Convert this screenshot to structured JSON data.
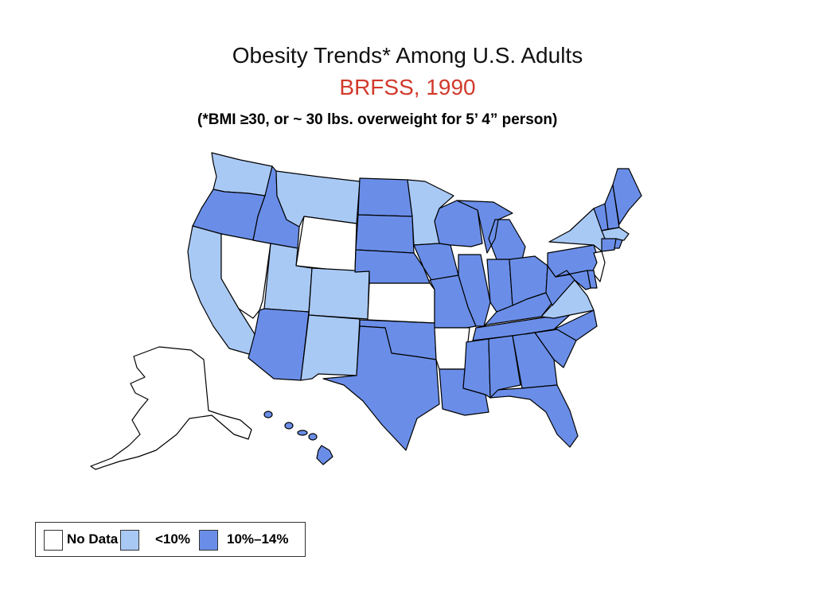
{
  "title": "Obesity Trends* Among U.S. Adults",
  "subtitle": "BRFSS, 1990",
  "note": "(*BMI ≥30, or ~ 30 lbs. overweight for 5’ 4” person)",
  "colors": {
    "title": "#111111",
    "subtitle": "#d13a2c",
    "no_data": "#ffffff",
    "lt10": "#a9c9f5",
    "r10_14": "#6a8ee8"
  },
  "legend": [
    {
      "label": "No Data",
      "category": "no_data"
    },
    {
      "label": "<10%",
      "category": "lt10"
    },
    {
      "label": "10%–14%",
      "category": "r10_14"
    }
  ],
  "states": {
    "WA": "lt10",
    "OR": "r10_14",
    "CA": "lt10",
    "NV": "no_data",
    "ID": "r10_14",
    "MT": "lt10",
    "WY": "no_data",
    "UT": "lt10",
    "CO": "lt10",
    "AZ": "r10_14",
    "NM": "lt10",
    "ND": "r10_14",
    "SD": "r10_14",
    "NE": "r10_14",
    "KS": "no_data",
    "OK": "r10_14",
    "TX": "r10_14",
    "MN": "lt10",
    "IA": "r10_14",
    "MO": "r10_14",
    "AR": "no_data",
    "LA": "r10_14",
    "WI": "r10_14",
    "IL": "r10_14",
    "MI": "r10_14",
    "IN": "r10_14",
    "OH": "r10_14",
    "KY": "r10_14",
    "TN": "r10_14",
    "MS": "r10_14",
    "AL": "r10_14",
    "GA": "r10_14",
    "FL": "r10_14",
    "SC": "r10_14",
    "NC": "r10_14",
    "VA": "lt10",
    "WV": "r10_14",
    "PA": "r10_14",
    "NY": "lt10",
    "VT": "r10_14",
    "NH": "r10_14",
    "ME": "r10_14",
    "MA": "lt10",
    "RI": "r10_14",
    "CT": "r10_14",
    "NJ": "no_data",
    "DE": "r10_14",
    "MD": "r10_14",
    "AK": "no_data",
    "HI": "r10_14"
  }
}
